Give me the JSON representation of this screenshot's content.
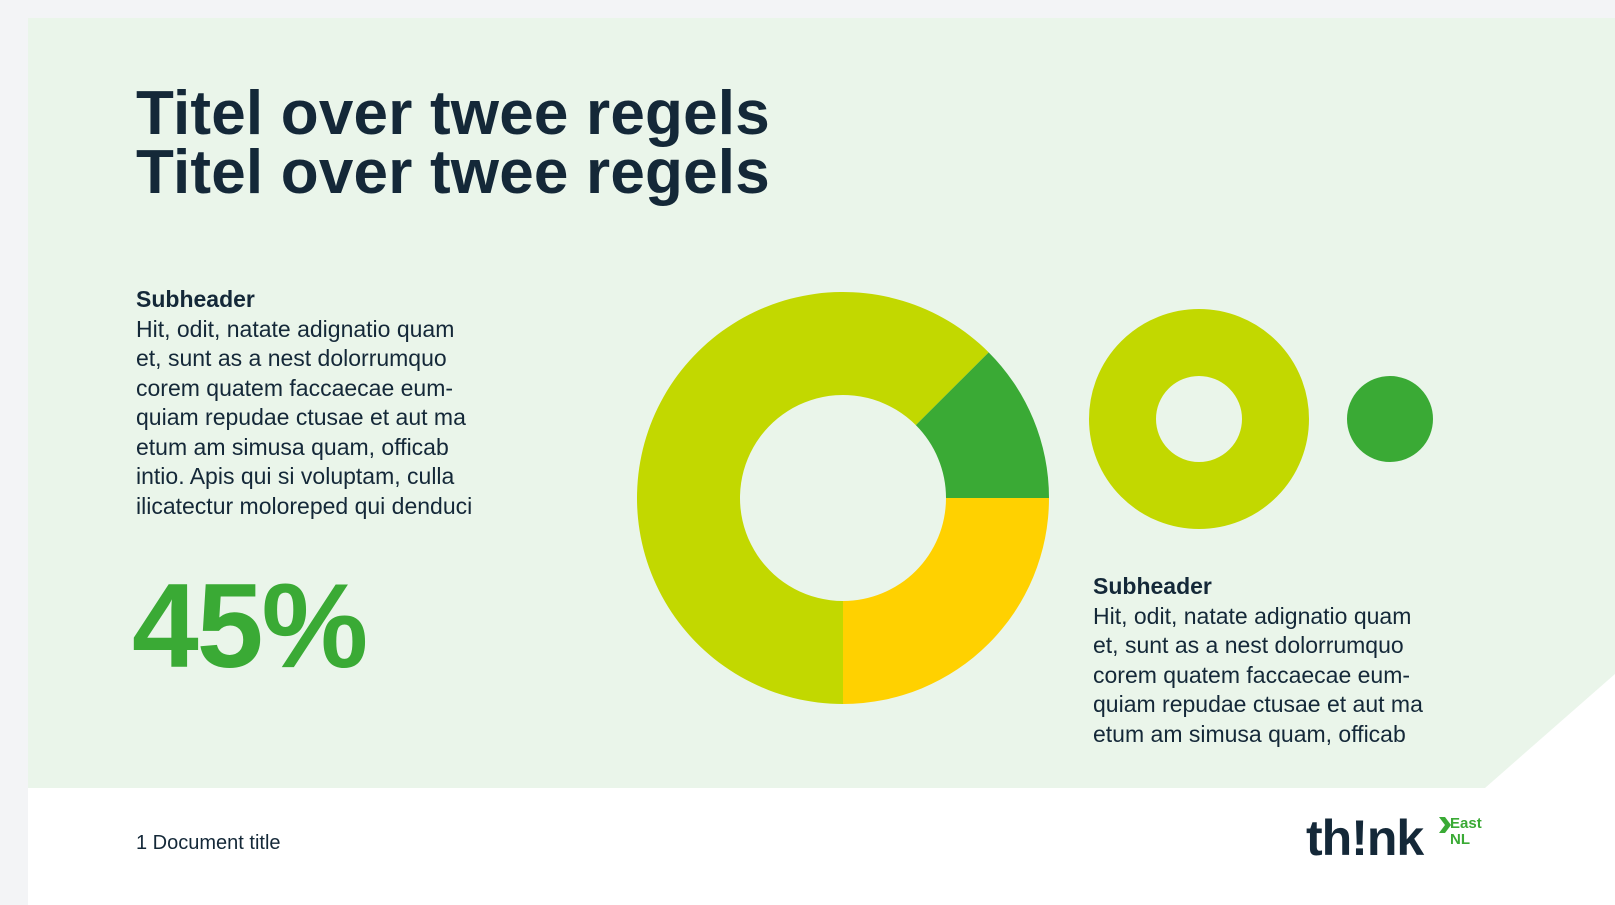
{
  "slide": {
    "title_lines": [
      "Titel over twee regels",
      "Titel over twee regels"
    ],
    "left_block": {
      "subheader": "Subheader",
      "body_lines": [
        "Hit, odit, natate adignatio quam",
        "et, sunt as a nest dolorrumquo",
        "corem quatem faccaecae eum-",
        "quiam repudae ctusae et aut ma",
        "etum am simusa quam, officab",
        "intio. Apis qui si voluptam, culla",
        "ilicatectur moloreped qui denduci"
      ]
    },
    "big_stat": "45%",
    "right_block": {
      "subheader": "Subheader",
      "body_lines": [
        "Hit, odit, natate adignatio quam",
        "et, sunt as a nest dolorrumquo",
        "corem quatem faccaecae eum-",
        "quiam repudae ctusae et aut ma",
        "etum am simusa quam, officab"
      ]
    },
    "footer": {
      "document_title": "1 Document title"
    },
    "logo": {
      "word": "th!nk",
      "sub_lines": [
        "East",
        "NL"
      ]
    }
  },
  "colors": {
    "panel_bg": "#eaf5ea",
    "dark_text": "#142838",
    "lime": "#c2d800",
    "green": "#3aaa35",
    "yellow": "#ffd100"
  },
  "chart_data": [
    {
      "type": "pie",
      "categories": [
        "",
        "",
        ""
      ],
      "values": [
        62.5,
        12.5,
        25
      ],
      "colors": [
        "#c2d800",
        "#3aaa35",
        "#ffd100"
      ],
      "title": ""
    },
    {
      "type": "pie",
      "categories": [
        ""
      ],
      "values": [
        100
      ],
      "colors": [
        "#c2d800"
      ],
      "title": ""
    },
    {
      "type": "pie",
      "categories": [
        ""
      ],
      "values": [
        100
      ],
      "colors": [
        "#3aaa35"
      ],
      "title": ""
    }
  ]
}
